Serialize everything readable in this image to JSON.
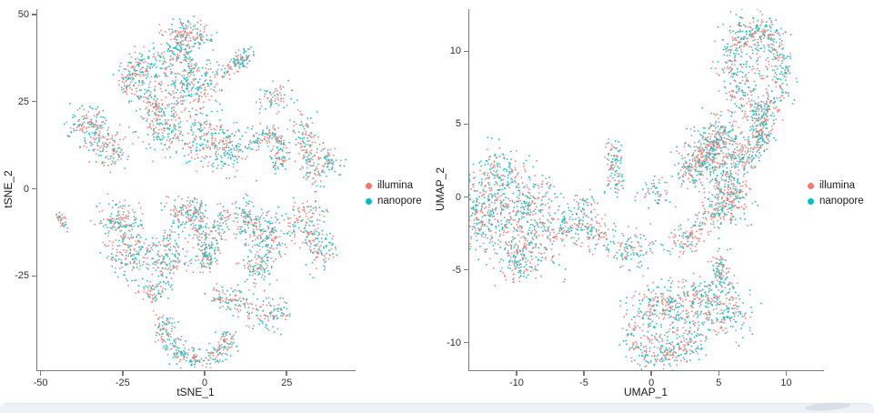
{
  "chart_data": [
    {
      "type": "scatter",
      "title": "",
      "xlabel": "tSNE_1",
      "ylabel": "tSNE_2",
      "xlim": [
        -51,
        46
      ],
      "ylim": [
        -52,
        51.5
      ],
      "xticks": [
        -50,
        -25,
        0,
        25
      ],
      "yticks": [
        -25,
        0,
        25,
        50
      ],
      "grid": false,
      "point_colors": {
        "illumina": "#F8766D",
        "nanopore": "#00BFC4"
      },
      "legend": {
        "position": "right",
        "entries": [
          {
            "label": "illumina",
            "color": "#F8766D"
          },
          {
            "label": "nanopore",
            "color": "#00BFC4"
          }
        ]
      },
      "clusters": [
        {
          "t": "b",
          "x": -5,
          "y": 44,
          "rx": 3.5,
          "ry": 2.2,
          "rot": 0,
          "n": 150
        },
        {
          "t": "b",
          "x": -9.5,
          "y": 39,
          "rx": 1.8,
          "ry": 1.8,
          "rot": 0,
          "n": 55
        },
        {
          "t": "s",
          "x1": -6,
          "y1": 41,
          "x2": -4,
          "y2": 34,
          "w": 1,
          "n": 45
        },
        {
          "t": "b",
          "x": -18,
          "y": 34,
          "rx": 4,
          "ry": 3,
          "rot": 20,
          "n": 160
        },
        {
          "t": "b",
          "x": -23,
          "y": 30,
          "rx": 2,
          "ry": 2,
          "rot": 0,
          "n": 55
        },
        {
          "t": "b",
          "x": -4,
          "y": 30,
          "rx": 4.5,
          "ry": 3.5,
          "rot": 0,
          "n": 210
        },
        {
          "t": "s",
          "x1": 5,
          "y1": 33,
          "x2": 14,
          "y2": 39,
          "w": 1.3,
          "n": 105
        },
        {
          "t": "b",
          "x": 22,
          "y": 26,
          "rx": 2.5,
          "ry": 2,
          "rot": 0,
          "n": 65
        },
        {
          "t": "b",
          "x": -35,
          "y": 18,
          "rx": 3.5,
          "ry": 3,
          "rot": -15,
          "n": 145
        },
        {
          "t": "b",
          "x": -29,
          "y": 11,
          "rx": 3,
          "ry": 2.5,
          "rot": 0,
          "n": 105
        },
        {
          "t": "s",
          "x1": -18,
          "y1": 28,
          "x2": -14,
          "y2": 22,
          "w": 1.2,
          "n": 40
        },
        {
          "t": "b",
          "x": -13,
          "y": 19,
          "rx": 4,
          "ry": 4.5,
          "rot": 0,
          "n": 220
        },
        {
          "t": "b",
          "x": -1,
          "y": 15,
          "rx": 2.5,
          "ry": 4,
          "rot": 0,
          "n": 125
        },
        {
          "t": "b",
          "x": 7,
          "y": 11,
          "rx": 3.5,
          "ry": 3.5,
          "rot": 0,
          "n": 150
        },
        {
          "t": "r",
          "x": 19,
          "y": 11,
          "r": 5,
          "w": 1.5,
          "a0": -70,
          "a1": 180,
          "n": 170
        },
        {
          "t": "s",
          "x1": 29,
          "y1": 20,
          "x2": 34,
          "y2": 2,
          "w": 2,
          "n": 160
        },
        {
          "t": "b",
          "x": 38,
          "y": 8,
          "rx": 2,
          "ry": 2.5,
          "rot": 0,
          "n": 55
        },
        {
          "t": "s",
          "x1": -45,
          "y1": -7,
          "x2": -42,
          "y2": -11,
          "w": 0.8,
          "n": 32,
          "mix": 0.75
        },
        {
          "t": "b",
          "x": -26,
          "y": -9,
          "rx": 3.5,
          "ry": 3,
          "rot": 0,
          "n": 150
        },
        {
          "t": "b",
          "x": -23,
          "y": -19,
          "rx": 3.5,
          "ry": 3.5,
          "rot": 0,
          "n": 160
        },
        {
          "t": "b",
          "x": -11,
          "y": -20,
          "rx": 3,
          "ry": 4,
          "rot": 0,
          "n": 160
        },
        {
          "t": "b",
          "x": -6,
          "y": -7,
          "rx": 3.5,
          "ry": 2.5,
          "rot": 0,
          "n": 130
        },
        {
          "t": "s",
          "x1": -2,
          "y1": -5,
          "x2": 0.5,
          "y2": -22,
          "w": 1.3,
          "n": 130
        },
        {
          "t": "s",
          "x1": 0.5,
          "y1": -22,
          "x2": 6,
          "y2": -6,
          "w": 1.3,
          "n": 110
        },
        {
          "t": "b",
          "x": 13,
          "y": -9,
          "rx": 3,
          "ry": 3,
          "rot": 0,
          "n": 130
        },
        {
          "t": "b",
          "x": 20,
          "y": -14,
          "rx": 3,
          "ry": 3.5,
          "rot": 0,
          "n": 140
        },
        {
          "t": "b",
          "x": 16,
          "y": -23,
          "rx": 2.5,
          "ry": 2.5,
          "rot": 0,
          "n": 85
        },
        {
          "t": "b",
          "x": 31,
          "y": -8,
          "rx": 3,
          "ry": 3,
          "rot": 0,
          "n": 110
        },
        {
          "t": "b",
          "x": 35,
          "y": -18,
          "rx": 2.5,
          "ry": 3,
          "rot": 0,
          "n": 90
        },
        {
          "t": "b",
          "x": 20,
          "y": -36,
          "rx": 3,
          "ry": 2.5,
          "rot": 0,
          "n": 100
        },
        {
          "t": "r",
          "x": -2,
          "y": -39,
          "r": 10,
          "w": 1.7,
          "a0": 165,
          "a1": 350,
          "n": 290
        },
        {
          "t": "b",
          "x": 10,
          "y": -32,
          "rx": 2,
          "ry": 2,
          "rot": 0,
          "n": 55
        },
        {
          "t": "b",
          "x": -16,
          "y": -30,
          "rx": 2,
          "ry": 2,
          "rot": 0,
          "n": 60
        },
        {
          "t": "b",
          "x": 5,
          "y": -31,
          "rx": 2,
          "ry": 1.5,
          "rot": 0,
          "n": 45
        }
      ]
    },
    {
      "type": "scatter",
      "title": "",
      "xlabel": "UMAP_1",
      "ylabel": "UMAP_2",
      "xlim": [
        -13.5,
        12.8
      ],
      "ylim": [
        -11.9,
        12.9
      ],
      "xticks": [
        -10,
        -5,
        0,
        5,
        10
      ],
      "yticks": [
        -10,
        -5,
        0,
        5,
        10
      ],
      "grid": false,
      "point_colors": {
        "illumina": "#F8766D",
        "nanopore": "#00BFC4"
      },
      "legend": {
        "position": "right",
        "entries": [
          {
            "label": "illumina",
            "color": "#F8766D"
          },
          {
            "label": "nanopore",
            "color": "#00BFC4"
          }
        ]
      },
      "clusters": [
        {
          "t": "r",
          "x": 7.75,
          "y": 8.9,
          "r": 1.9,
          "w": 0.45,
          "a0": 0,
          "a1": 360,
          "xs": 1.1,
          "ys": 1.45,
          "n": 400
        },
        {
          "t": "b",
          "x": 7.75,
          "y": 8.9,
          "rx": 1.2,
          "ry": 1.6,
          "rot": 0,
          "n": 120
        },
        {
          "t": "b",
          "x": 7.6,
          "y": 11.1,
          "rx": 0.8,
          "ry": 0.5,
          "rot": 0,
          "n": 80
        },
        {
          "t": "s",
          "x1": 8.4,
          "y1": 6.2,
          "x2": 7.9,
          "y2": 3.4,
          "w": 0.45,
          "n": 200
        },
        {
          "t": "b",
          "x": 5.2,
          "y": 4.4,
          "rx": 0.8,
          "ry": 0.7,
          "rot": 0,
          "n": 120
        },
        {
          "t": "s",
          "x1": 5.0,
          "y1": 4.0,
          "x2": 4.3,
          "y2": 2.9,
          "w": 0.4,
          "n": 80
        },
        {
          "t": "s",
          "x1": 7.6,
          "y1": 3.2,
          "x2": 6.0,
          "y2": 2.2,
          "w": 0.5,
          "n": 110
        },
        {
          "t": "b",
          "x": 4.2,
          "y": 2.8,
          "rx": 1.1,
          "ry": 0.9,
          "rot": 0,
          "n": 170,
          "mix": 0.6
        },
        {
          "t": "s",
          "x1": 2.3,
          "y1": 1.5,
          "x2": 4.0,
          "y2": 2.5,
          "w": 0.5,
          "n": 110
        },
        {
          "t": "b",
          "x": 5.3,
          "y": 1.2,
          "rx": 0.9,
          "ry": 0.9,
          "rot": 0,
          "n": 130
        },
        {
          "t": "s",
          "x1": -2.9,
          "y1": 3.7,
          "x2": -2.6,
          "y2": 0.6,
          "w": 0.35,
          "n": 100
        },
        {
          "t": "b",
          "x": -11.3,
          "y": 1.5,
          "rx": 0.9,
          "ry": 1.1,
          "rot": 0,
          "n": 120
        },
        {
          "t": "b",
          "x": -11.7,
          "y": -1.2,
          "rx": 1.3,
          "ry": 1.6,
          "rot": 0,
          "n": 240
        },
        {
          "t": "b",
          "x": -9.6,
          "y": -0.3,
          "rx": 1.3,
          "ry": 1.2,
          "rot": 0,
          "n": 200
        },
        {
          "t": "b",
          "x": -8.6,
          "y": -2.6,
          "rx": 1.2,
          "ry": 1.4,
          "rot": 0,
          "n": 190
        },
        {
          "t": "s",
          "x1": -10.1,
          "y1": -3.4,
          "x2": -9.7,
          "y2": -5.3,
          "w": 0.5,
          "n": 110
        },
        {
          "t": "b",
          "x": -13,
          "y": -1.8,
          "rx": 0.6,
          "ry": 1,
          "rot": 0,
          "n": 70
        },
        {
          "t": "s",
          "x1": -7.0,
          "y1": -1.8,
          "x2": -3.2,
          "y2": -2.7,
          "w": 0.55,
          "n": 180
        },
        {
          "t": "b",
          "x": -5.2,
          "y": -0.7,
          "rx": 0.7,
          "ry": 0.5,
          "rot": 0,
          "n": 50
        },
        {
          "t": "b",
          "x": -1.5,
          "y": -3.6,
          "rx": 0.8,
          "ry": 0.7,
          "rot": 0,
          "n": 100
        },
        {
          "t": "s",
          "x1": 6.6,
          "y1": 0.6,
          "x2": 1.9,
          "y2": -3.4,
          "w": 0.5,
          "n": 240,
          "mix": 0.6
        },
        {
          "t": "b",
          "x": 5.9,
          "y": -0.7,
          "rx": 0.8,
          "ry": 0.7,
          "rot": 0,
          "n": 90
        },
        {
          "t": "b",
          "x": 0.3,
          "y": 0.3,
          "rx": 0.6,
          "ry": 0.5,
          "rot": 0,
          "n": 55
        },
        {
          "t": "s",
          "x1": 5.0,
          "y1": -4.0,
          "x2": 5.3,
          "y2": -6.2,
          "w": 0.4,
          "n": 100
        },
        {
          "t": "b",
          "x": 5.4,
          "y": -7.9,
          "rx": 1.1,
          "ry": 1.0,
          "rot": 0,
          "n": 190
        },
        {
          "t": "s",
          "x1": 2.8,
          "y1": -6.2,
          "x2": 4.4,
          "y2": -7.2,
          "w": 0.5,
          "n": 80
        },
        {
          "t": "b",
          "x": 1.2,
          "y": -7.0,
          "rx": 1.4,
          "ry": 0.7,
          "rot": 0,
          "n": 100
        },
        {
          "t": "r",
          "x": 0.9,
          "y": -9.3,
          "r": 1.9,
          "w": 0.5,
          "a0": 0,
          "a1": 360,
          "xs": 1.15,
          "ys": 1.0,
          "n": 340
        },
        {
          "t": "b",
          "x": 1.3,
          "y": -10.6,
          "rx": 1.1,
          "ry": 0.5,
          "rot": 0,
          "n": 70
        },
        {
          "t": "b",
          "x": 0.9,
          "y": -9.3,
          "rx": 0.9,
          "ry": 0.7,
          "rot": 0,
          "n": 50
        }
      ]
    }
  ],
  "render": {
    "seed": 1234,
    "point_size": 1.6,
    "point_alpha": 0.88
  }
}
